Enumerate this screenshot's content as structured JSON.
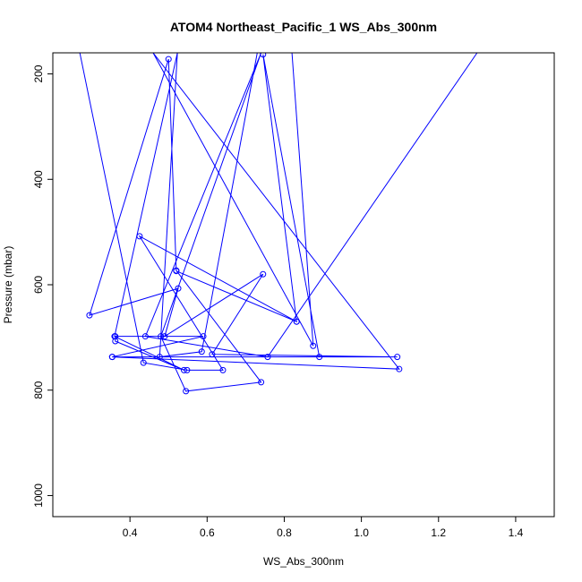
{
  "chart_data": {
    "type": "line",
    "title": "ATOM4 Northeast_Pacific_1 WS_Abs_300nm",
    "xlabel": "WS_Abs_300nm",
    "ylabel": "Pressure (mbar)",
    "xlim": [
      0.2,
      1.5
    ],
    "ylim": [
      1040,
      160
    ],
    "y_reversed": true,
    "grid": false,
    "legend": "none",
    "x_ticks": [
      0.4,
      0.6,
      0.8,
      1.0,
      1.2,
      1.4
    ],
    "x_tick_labels": [
      "0.4",
      "0.6",
      "0.8",
      "1.0",
      "1.2",
      "1.4"
    ],
    "y_ticks": [
      200,
      400,
      600,
      800,
      1000
    ],
    "y_tick_labels": [
      "200",
      "400",
      "600",
      "800",
      "1000"
    ],
    "color": "#0000ff",
    "series": [
      {
        "points": [
          [
            0.27,
            160
          ],
          [
            0.435,
            748
          ],
          [
            0.548,
            762
          ],
          [
            0.641,
            762
          ],
          [
            0.425,
            508
          ],
          [
            0.832,
            670
          ],
          [
            0.52,
            574
          ],
          [
            0.832,
            670
          ],
          [
            0.745,
            163
          ],
          [
            0.891,
            737
          ],
          [
            0.354,
            737
          ],
          [
            0.59,
            698
          ],
          [
            0.362,
            698
          ],
          [
            0.362,
            707
          ],
          [
            0.54,
            762
          ],
          [
            0.36,
            698
          ],
          [
            0.523,
            160
          ],
          [
            0.477,
            737
          ],
          [
            0.586,
            727
          ],
          [
            0.73,
            160
          ],
          [
            0.82,
            160
          ],
          [
            0.875,
            716
          ],
          [
            0.46,
            160
          ],
          [
            1.098,
            760
          ],
          [
            0.354,
            737
          ],
          [
            1.093,
            737
          ],
          [
            0.613,
            732
          ],
          [
            0.745,
            580
          ],
          [
            0.49,
            698
          ],
          [
            0.525,
            607
          ],
          [
            0.295,
            658
          ],
          [
            0.5,
            172
          ],
          [
            0.52,
            573
          ],
          [
            0.74,
            785
          ],
          [
            0.545,
            802
          ],
          [
            0.48,
            698
          ],
          [
            0.74,
            160
          ],
          [
            0.44,
            698
          ],
          [
            0.757,
            737
          ],
          [
            1.3,
            160
          ]
        ]
      }
    ]
  }
}
